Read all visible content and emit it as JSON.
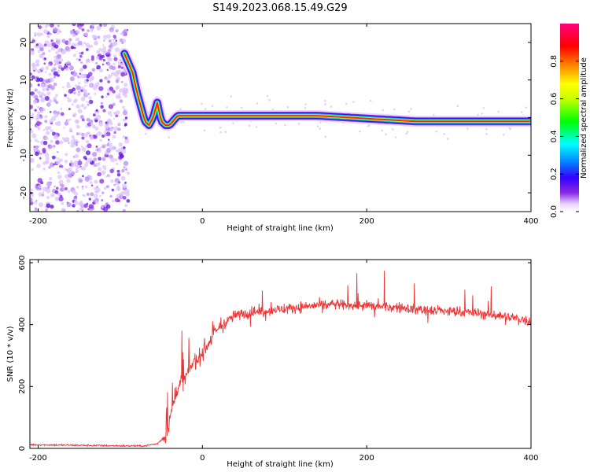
{
  "title": "S149.2023.068.15.49.G29",
  "chart_data": [
    {
      "type": "heatmap",
      "title": "S149.2023.068.15.49.G29",
      "xlabel": "Height of straight line (km)",
      "ylabel": "Frequency (Hz)",
      "xlim": [
        -210,
        400
      ],
      "ylim": [
        -25,
        25
      ],
      "xticks": [
        -200,
        0,
        200,
        400
      ],
      "yticks": [
        -20,
        -10,
        0,
        10,
        20
      ],
      "colorbar": {
        "label": "Normalized spectral amplitude",
        "range": [
          0,
          1
        ],
        "ticks": [
          0.0,
          0.2,
          0.4,
          0.6,
          0.8
        ],
        "colormap": [
          "#ffffff",
          "#e9d4ff",
          "#8a2be2",
          "#3300ff",
          "#0099ff",
          "#00ffff",
          "#00ff00",
          "#c8ff00",
          "#ffff00",
          "#ff8000",
          "#ff0000",
          "#ff0080"
        ]
      },
      "noise_region": {
        "x": [
          -210,
          -90
        ],
        "frequency": [
          -25,
          25
        ]
      },
      "dominant_frequency_track": {
        "x": [
          -95,
          -85,
          -80,
          -75,
          -70,
          -65,
          -60,
          -55,
          -50,
          -45,
          -40,
          -30,
          -20,
          0,
          50,
          100,
          140,
          180,
          220,
          260,
          300,
          340,
          400
        ],
        "frequency": [
          17,
          12,
          7,
          3,
          -1,
          -2,
          0,
          4,
          -1,
          -2,
          -2,
          0.5,
          0.5,
          0.5,
          0.5,
          0.5,
          0.5,
          0,
          -0.5,
          -1,
          -1,
          -1,
          -1
        ]
      },
      "grid": false
    },
    {
      "type": "line",
      "xlabel": "Height of straight line (km)",
      "ylabel": "SNR (10 * v/v)",
      "xlim": [
        -210,
        400
      ],
      "ylim": [
        0,
        610
      ],
      "xticks": [
        -200,
        0,
        200,
        400
      ],
      "yticks": [
        0,
        200,
        400,
        600
      ],
      "color": "#ee3333",
      "series": [
        {
          "x": [
            -210,
            -180,
            -150,
            -120,
            -90,
            -70,
            -55,
            -45,
            -40,
            -35,
            -30,
            -25,
            -20,
            -15,
            -10,
            -5,
            0,
            10,
            20,
            30,
            40,
            60,
            80,
            100,
            130,
            160,
            200,
            240,
            280,
            320,
            360,
            400
          ],
          "values": [
            12,
            11,
            10,
            9,
            8,
            8,
            15,
            40,
            90,
            150,
            200,
            210,
            230,
            260,
            280,
            290,
            310,
            350,
            390,
            410,
            430,
            440,
            445,
            450,
            460,
            465,
            460,
            455,
            445,
            440,
            430,
            410
          ]
        }
      ],
      "grid": false
    }
  ]
}
